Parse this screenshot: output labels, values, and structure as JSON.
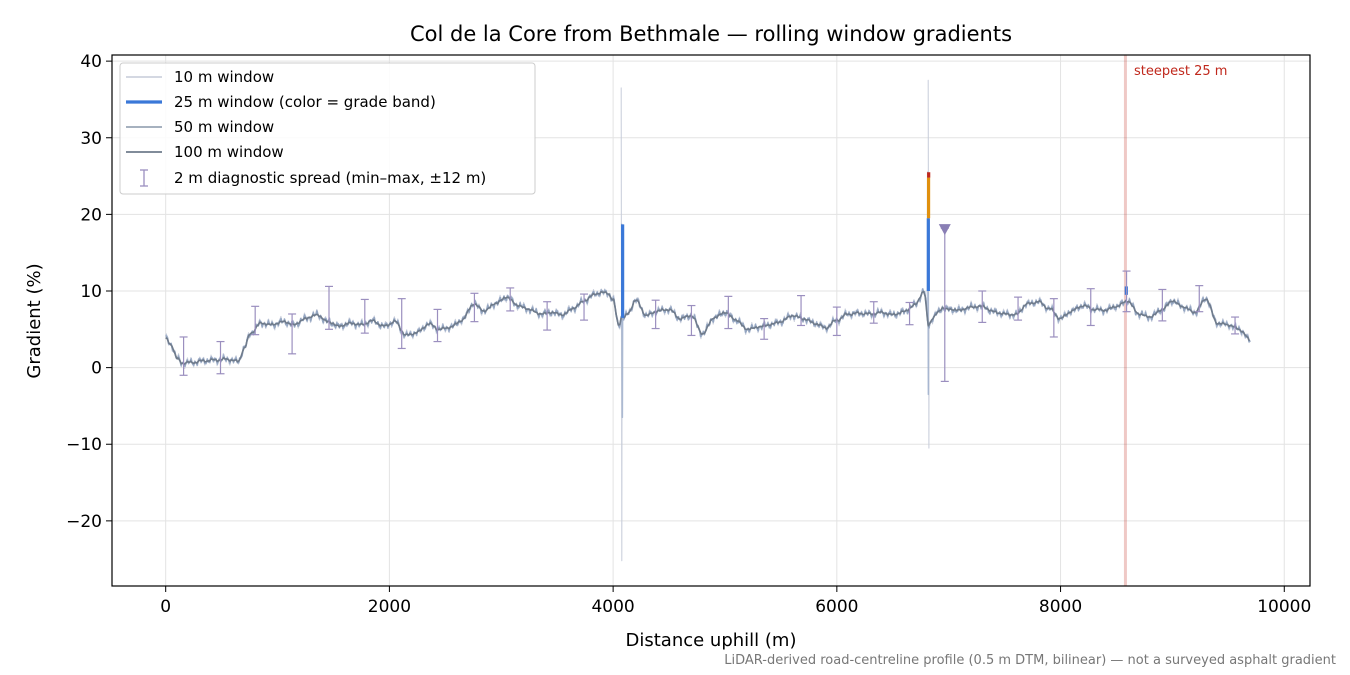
{
  "chart_data": {
    "type": "line",
    "title": "Col de la Core from Bethmale — rolling window gradients",
    "xlabel": "Distance uphill (m)",
    "ylabel": "Gradient (%)",
    "xlim": [
      -480,
      10230
    ],
    "ylim": [
      -28.5,
      40.8
    ],
    "xticks": [
      0,
      2000,
      4000,
      6000,
      8000,
      10000
    ],
    "xtick_labels": [
      "0",
      "2000",
      "4000",
      "6000",
      "8000",
      "10000"
    ],
    "yticks": [
      -20,
      -10,
      0,
      10,
      20,
      30,
      40
    ],
    "ytick_labels": [
      "−20",
      "−10",
      "0",
      "10",
      "20",
      "30",
      "40"
    ],
    "grid": true,
    "legend_position": "upper-left",
    "series": [
      {
        "name": "10 m window",
        "color": "#c6ccd9"
      },
      {
        "name": "25 m window (color = grade band)",
        "color": "#3a78d8"
      },
      {
        "name": "50 m window",
        "color": "#9aa6b6"
      },
      {
        "name": "100 m window",
        "color": "#6f7b8b"
      }
    ],
    "errorbar_series": {
      "name": "2 m diagnostic spread (min–max, ±12 m)",
      "color": "#9b8fbf"
    },
    "profile_anchors": {
      "x": [
        0,
        50,
        100,
        150,
        250,
        350,
        450,
        550,
        650,
        700,
        760,
        850,
        950,
        1050,
        1150,
        1250,
        1350,
        1450,
        1550,
        1650,
        1750,
        1850,
        1950,
        2050,
        2150,
        2250,
        2350,
        2450,
        2550,
        2650,
        2750,
        2850,
        2950,
        3050,
        3150,
        3250,
        3350,
        3450,
        3550,
        3650,
        3750,
        3850,
        3950,
        4000,
        4050,
        4080,
        4100,
        4130,
        4200,
        4300,
        4400,
        4500,
        4600,
        4700,
        4800,
        4900,
        5000,
        5100,
        5200,
        5300,
        5400,
        5500,
        5600,
        5700,
        5800,
        5900,
        6000,
        6100,
        6200,
        6300,
        6400,
        6500,
        6600,
        6700,
        6780,
        6820,
        6860,
        6900,
        6950,
        7000,
        7100,
        7200,
        7300,
        7400,
        7500,
        7600,
        7700,
        7800,
        7900,
        8000,
        8100,
        8200,
        8300,
        8400,
        8500,
        8600,
        8700,
        8800,
        8900,
        9000,
        9100,
        9200,
        9300,
        9400,
        9500,
        9600,
        9700
      ],
      "y": [
        3.8,
        3.0,
        1.2,
        0.6,
        0.7,
        0.9,
        1.0,
        1.1,
        0.8,
        2.5,
        4.5,
        5.8,
        5.6,
        6.0,
        5.6,
        6.4,
        6.9,
        6.0,
        5.4,
        5.8,
        5.6,
        6.1,
        5.4,
        6.0,
        4.2,
        4.6,
        5.7,
        5.0,
        5.3,
        6.2,
        8.3,
        7.4,
        8.4,
        9.2,
        8.1,
        7.6,
        7.0,
        7.2,
        6.9,
        7.8,
        8.8,
        9.7,
        9.8,
        8.8,
        5.5,
        6.8,
        6.5,
        7.0,
        8.8,
        6.8,
        7.4,
        7.6,
        6.4,
        6.8,
        4.4,
        6.5,
        7.2,
        6.2,
        5.0,
        5.3,
        5.6,
        6.0,
        6.8,
        6.4,
        5.8,
        5.2,
        6.2,
        7.0,
        7.1,
        7.0,
        7.2,
        6.9,
        7.3,
        8.2,
        10.0,
        5.5,
        6.5,
        7.2,
        7.8,
        7.6,
        7.5,
        7.9,
        8.0,
        7.3,
        7.0,
        6.9,
        8.3,
        8.6,
        7.7,
        6.4,
        7.4,
        8.1,
        7.6,
        7.5,
        8.0,
        8.7,
        7.0,
        6.6,
        7.5,
        8.7,
        7.9,
        7.2,
        9.0,
        5.8,
        5.6,
        5.0,
        3.5
      ]
    },
    "spikes": [
      {
        "x": 4075,
        "max": 36.5,
        "min": -25.2,
        "series": "10 m window"
      },
      {
        "x": 6820,
        "max": 37.5,
        "min": -10.5,
        "series": "10 m window"
      },
      {
        "x": 4080,
        "max": 18.7,
        "min": -6.5,
        "series": "25 m window (color = grade band)"
      },
      {
        "x": 6815,
        "max": 25.5,
        "min": -3.5,
        "series": "25 m window (color = grade band)"
      }
    ],
    "grade_band_segments": [
      {
        "x": 4085,
        "from": 6.5,
        "to": 18.7,
        "color": "#3a78d8"
      },
      {
        "x": 6818,
        "from": 10.0,
        "to": 19.5,
        "color": "#3a78d8"
      },
      {
        "x": 6820,
        "from": 19.5,
        "to": 24.8,
        "color": "#e0900e"
      },
      {
        "x": 6821,
        "from": 24.8,
        "to": 25.5,
        "color": "#c0281c"
      },
      {
        "x": 8588,
        "from": 9.5,
        "to": 10.6,
        "color": "#3a78d8"
      }
    ],
    "errorbars": [
      {
        "x": 160,
        "min": -1.0,
        "max": 4.0
      },
      {
        "x": 490,
        "min": -0.8,
        "max": 3.4
      },
      {
        "x": 800,
        "min": 4.3,
        "max": 8.0
      },
      {
        "x": 1130,
        "min": 1.8,
        "max": 7.0
      },
      {
        "x": 1460,
        "min": 5.0,
        "max": 10.6
      },
      {
        "x": 1780,
        "min": 4.5,
        "max": 8.9
      },
      {
        "x": 2110,
        "min": 2.5,
        "max": 9.0
      },
      {
        "x": 2430,
        "min": 3.4,
        "max": 7.6
      },
      {
        "x": 2760,
        "min": 6.0,
        "max": 9.7
      },
      {
        "x": 3080,
        "min": 7.4,
        "max": 10.4
      },
      {
        "x": 3410,
        "min": 4.9,
        "max": 8.6
      },
      {
        "x": 3740,
        "min": 6.2,
        "max": 9.6
      },
      {
        "x": 4380,
        "min": 5.1,
        "max": 8.8
      },
      {
        "x": 4700,
        "min": 4.2,
        "max": 8.1
      },
      {
        "x": 5030,
        "min": 5.1,
        "max": 9.3
      },
      {
        "x": 5350,
        "min": 3.7,
        "max": 6.4
      },
      {
        "x": 5680,
        "min": 5.5,
        "max": 9.4
      },
      {
        "x": 6000,
        "min": 4.2,
        "max": 7.9
      },
      {
        "x": 6330,
        "min": 5.8,
        "max": 8.6
      },
      {
        "x": 6650,
        "min": 5.6,
        "max": 8.5
      },
      {
        "x": 6965,
        "min": -1.8,
        "max": 18.2
      },
      {
        "x": 7300,
        "min": 5.9,
        "max": 10.0
      },
      {
        "x": 7620,
        "min": 6.2,
        "max": 9.2
      },
      {
        "x": 7940,
        "min": 4.0,
        "max": 9.0
      },
      {
        "x": 8270,
        "min": 5.5,
        "max": 10.3
      },
      {
        "x": 8590,
        "min": 7.3,
        "max": 12.6
      },
      {
        "x": 8910,
        "min": 6.1,
        "max": 10.2
      },
      {
        "x": 9240,
        "min": 7.3,
        "max": 10.7
      },
      {
        "x": 9560,
        "min": 4.4,
        "max": 6.6
      }
    ],
    "errorbar_marker": {
      "x": 6965,
      "y": 18.2
    },
    "steepest_marker": {
      "x": 8580,
      "label": "steepest 25 m",
      "color": "#c0281c"
    },
    "footnote": "LiDAR-derived road-centreline profile (0.5 m DTM, bilinear) — not a surveyed asphalt gradient"
  }
}
